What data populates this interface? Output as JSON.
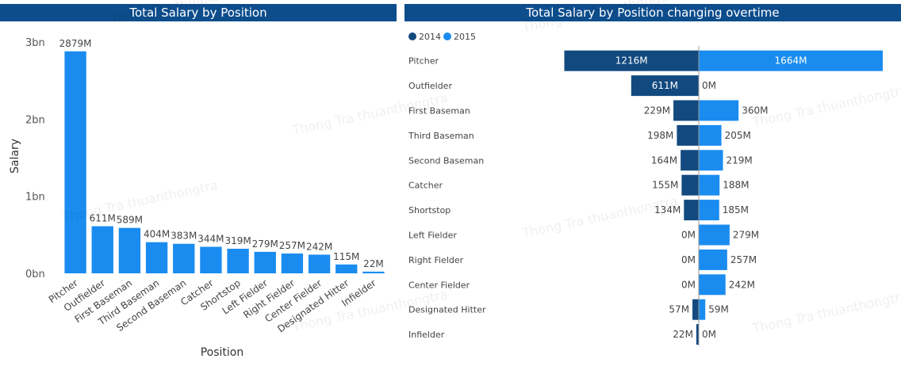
{
  "charts_meta": {
    "left_title": "Total Salary by Position",
    "right_title": "Total Salary by Position changing overtime",
    "watermark": "Thong Tra thuanthongtra"
  },
  "chart_data": [
    {
      "type": "bar",
      "title": "Total Salary by Position",
      "xlabel": "Position",
      "ylabel": "Salary",
      "ylim": [
        0,
        3000
      ],
      "yticks": [
        "0bn",
        "1bn",
        "2bn",
        "3bn"
      ],
      "categories": [
        "Pitcher",
        "Outfielder",
        "First Baseman",
        "Third Baseman",
        "Second Baseman",
        "Catcher",
        "Shortstop",
        "Left Fielder",
        "Right Fielder",
        "Center Fielder",
        "Designated Hitter",
        "Infielder"
      ],
      "values": [
        2879,
        611,
        589,
        404,
        383,
        344,
        319,
        279,
        257,
        242,
        115,
        22
      ],
      "labels": [
        "2879M",
        "611M",
        "589M",
        "404M",
        "383M",
        "344M",
        "319M",
        "279M",
        "257M",
        "242M",
        "115M",
        "22M"
      ],
      "unit": "M",
      "color": "#1a8cf0"
    },
    {
      "type": "bar",
      "orientation": "diverging-horizontal",
      "title": "Total Salary by Position changing overtime",
      "categories": [
        "Pitcher",
        "Outfielder",
        "First Baseman",
        "Third Baseman",
        "Second Baseman",
        "Catcher",
        "Shortstop",
        "Left Fielder",
        "Right Fielder",
        "Center Fielder",
        "Designated Hitter",
        "Infielder"
      ],
      "series": [
        {
          "name": "2014",
          "color": "#124a7f",
          "values": [
            1216,
            611,
            229,
            198,
            164,
            155,
            134,
            0,
            0,
            0,
            57,
            22
          ],
          "labels": [
            "1216M",
            "611M",
            "229M",
            "198M",
            "164M",
            "155M",
            "134M",
            "0M",
            "0M",
            "0M",
            "57M",
            "22M"
          ]
        },
        {
          "name": "2015",
          "color": "#1a8cf0",
          "values": [
            1664,
            0,
            360,
            205,
            219,
            188,
            185,
            279,
            257,
            242,
            59,
            0
          ],
          "labels": [
            "1664M",
            "0M",
            "360M",
            "205M",
            "219M",
            "188M",
            "185M",
            "279M",
            "257M",
            "242M",
            "59M",
            "0M"
          ]
        }
      ],
      "legend_position": "top-left"
    }
  ]
}
